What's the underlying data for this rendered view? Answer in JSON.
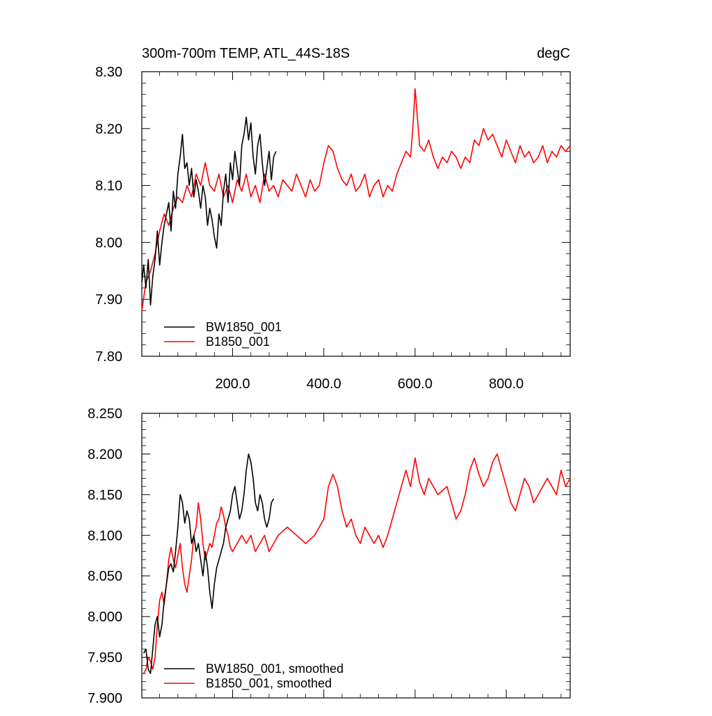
{
  "chart_data": [
    {
      "type": "line",
      "title": "300m-700m TEMP, ATL_44S-18S",
      "units": "degC",
      "xlim": [
        1,
        940
      ],
      "ylim": [
        7.8,
        8.3
      ],
      "x_ticks": [
        200,
        400,
        600,
        800
      ],
      "x_tick_labels": [
        "200.0",
        "400.0",
        "600.0",
        "800.0"
      ],
      "y_ticks": [
        7.8,
        7.9,
        8.0,
        8.1,
        8.2,
        8.3
      ],
      "y_tick_labels": [
        "7.80",
        "7.90",
        "8.00",
        "8.10",
        "8.20",
        "8.30"
      ],
      "legend_position": "bottom-left",
      "series": [
        {
          "name": "BW1850_001",
          "color": "#000000",
          "x": [
            1,
            5,
            10,
            15,
            20,
            25,
            30,
            35,
            40,
            45,
            50,
            55,
            60,
            65,
            70,
            75,
            80,
            85,
            90,
            95,
            100,
            105,
            110,
            115,
            120,
            125,
            130,
            135,
            140,
            145,
            150,
            155,
            160,
            165,
            170,
            175,
            180,
            185,
            190,
            195,
            200,
            205,
            210,
            215,
            220,
            225,
            230,
            235,
            240,
            245,
            250,
            255,
            260,
            265,
            270,
            275,
            280,
            285,
            290,
            295
          ],
          "values": [
            7.93,
            7.96,
            7.92,
            7.97,
            7.89,
            7.94,
            7.97,
            8.02,
            7.96,
            8.0,
            8.03,
            8.05,
            8.07,
            8.02,
            8.09,
            8.06,
            8.12,
            8.15,
            8.19,
            8.13,
            8.14,
            8.1,
            8.13,
            8.08,
            8.11,
            8.09,
            8.06,
            8.1,
            8.08,
            8.03,
            8.06,
            8.04,
            8.01,
            7.99,
            8.05,
            8.03,
            8.09,
            8.12,
            8.07,
            8.14,
            8.11,
            8.16,
            8.13,
            8.1,
            8.17,
            8.19,
            8.22,
            8.18,
            8.21,
            8.15,
            8.12,
            8.17,
            8.19,
            8.14,
            8.1,
            8.13,
            8.16,
            8.11,
            8.15,
            8.16
          ]
        },
        {
          "name": "B1850_001",
          "color": "#ff0000",
          "x": [
            1,
            10,
            20,
            30,
            40,
            50,
            60,
            70,
            80,
            90,
            100,
            110,
            120,
            130,
            140,
            150,
            160,
            170,
            180,
            190,
            200,
            210,
            220,
            230,
            240,
            250,
            260,
            270,
            280,
            290,
            300,
            310,
            320,
            330,
            340,
            350,
            360,
            370,
            380,
            390,
            400,
            410,
            420,
            430,
            440,
            450,
            460,
            470,
            480,
            490,
            500,
            510,
            520,
            530,
            540,
            550,
            560,
            570,
            580,
            590,
            595,
            600,
            610,
            620,
            630,
            640,
            650,
            660,
            670,
            680,
            690,
            700,
            710,
            720,
            730,
            740,
            750,
            760,
            770,
            780,
            790,
            800,
            810,
            820,
            830,
            840,
            850,
            860,
            870,
            880,
            890,
            900,
            910,
            920,
            930,
            940
          ],
          "values": [
            7.88,
            7.93,
            7.95,
            7.98,
            8.02,
            8.05,
            8.03,
            8.06,
            8.08,
            8.07,
            8.1,
            8.08,
            8.12,
            8.1,
            8.14,
            8.1,
            8.09,
            8.12,
            8.08,
            8.1,
            8.07,
            8.11,
            8.09,
            8.12,
            8.08,
            8.1,
            8.07,
            8.12,
            8.09,
            8.1,
            8.08,
            8.11,
            8.1,
            8.09,
            8.12,
            8.1,
            8.08,
            8.11,
            8.09,
            8.1,
            8.14,
            8.17,
            8.16,
            8.13,
            8.11,
            8.1,
            8.12,
            8.09,
            8.1,
            8.12,
            8.08,
            8.1,
            8.11,
            8.08,
            8.1,
            8.09,
            8.12,
            8.14,
            8.16,
            8.15,
            8.2,
            8.27,
            8.17,
            8.16,
            8.18,
            8.15,
            8.13,
            8.15,
            8.14,
            8.16,
            8.15,
            8.13,
            8.15,
            8.14,
            8.18,
            8.17,
            8.2,
            8.18,
            8.19,
            8.17,
            8.15,
            8.18,
            8.16,
            8.14,
            8.17,
            8.15,
            8.16,
            8.14,
            8.15,
            8.17,
            8.14,
            8.16,
            8.15,
            8.17,
            8.16,
            8.17
          ]
        }
      ]
    },
    {
      "type": "line",
      "title": "",
      "xlim": [
        1,
        940
      ],
      "ylim": [
        7.9,
        8.25
      ],
      "x_ticks": [
        200,
        400,
        600,
        800
      ],
      "x_tick_labels": [
        "",
        "",
        "",
        ""
      ],
      "y_ticks": [
        7.9,
        7.95,
        8.0,
        8.05,
        8.1,
        8.15,
        8.2,
        8.25
      ],
      "y_tick_labels": [
        "7.900",
        "7.950",
        "8.000",
        "8.050",
        "8.100",
        "8.150",
        "8.200",
        "8.250"
      ],
      "legend_position": "bottom-left",
      "series": [
        {
          "name": "BW1850_001, smoothed",
          "color": "#000000",
          "x": [
            5,
            10,
            15,
            20,
            25,
            30,
            35,
            40,
            45,
            50,
            55,
            60,
            65,
            70,
            75,
            80,
            85,
            90,
            95,
            100,
            105,
            110,
            115,
            120,
            125,
            130,
            135,
            140,
            145,
            150,
            155,
            160,
            165,
            170,
            175,
            180,
            185,
            190,
            195,
            200,
            205,
            210,
            215,
            220,
            225,
            230,
            235,
            240,
            245,
            250,
            255,
            260,
            265,
            270,
            275,
            280,
            285,
            290
          ],
          "values": [
            7.955,
            7.96,
            7.935,
            7.93,
            7.96,
            7.99,
            8.0,
            7.975,
            7.99,
            8.02,
            8.04,
            8.06,
            8.065,
            8.055,
            8.08,
            8.11,
            8.15,
            8.14,
            8.115,
            8.13,
            8.12,
            8.09,
            8.1,
            8.08,
            8.09,
            8.07,
            8.05,
            8.08,
            8.06,
            8.03,
            8.01,
            8.04,
            8.06,
            8.07,
            8.08,
            8.09,
            8.11,
            8.12,
            8.13,
            8.15,
            8.16,
            8.14,
            8.12,
            8.13,
            8.15,
            8.18,
            8.2,
            8.19,
            8.17,
            8.14,
            8.13,
            8.15,
            8.14,
            8.12,
            8.11,
            8.12,
            8.14,
            8.145
          ]
        },
        {
          "name": "B1850_001, smoothed",
          "color": "#ff0000",
          "x": [
            5,
            10,
            15,
            20,
            25,
            30,
            35,
            40,
            45,
            50,
            55,
            60,
            65,
            70,
            75,
            80,
            85,
            90,
            95,
            100,
            105,
            110,
            115,
            120,
            125,
            130,
            135,
            140,
            145,
            150,
            155,
            160,
            165,
            170,
            175,
            180,
            185,
            190,
            195,
            200,
            210,
            220,
            230,
            240,
            250,
            260,
            270,
            280,
            290,
            300,
            320,
            340,
            360,
            380,
            400,
            410,
            420,
            430,
            440,
            450,
            460,
            470,
            480,
            490,
            500,
            510,
            520,
            530,
            540,
            550,
            560,
            570,
            580,
            590,
            600,
            610,
            620,
            630,
            640,
            650,
            660,
            670,
            680,
            690,
            700,
            710,
            720,
            730,
            740,
            750,
            760,
            770,
            780,
            790,
            800,
            810,
            820,
            830,
            840,
            850,
            860,
            870,
            880,
            890,
            900,
            910,
            920,
            930,
            940
          ],
          "values": [
            7.93,
            7.935,
            7.95,
            7.945,
            7.935,
            7.95,
            7.99,
            8.02,
            8.03,
            8.015,
            8.04,
            8.07,
            8.085,
            8.07,
            8.06,
            8.075,
            8.09,
            8.06,
            8.04,
            8.03,
            8.05,
            8.07,
            8.1,
            8.11,
            8.14,
            8.12,
            8.09,
            8.07,
            8.08,
            8.09,
            8.085,
            8.1,
            8.115,
            8.12,
            8.135,
            8.125,
            8.11,
            8.1,
            8.085,
            8.08,
            8.09,
            8.1,
            8.09,
            8.1,
            8.08,
            8.09,
            8.1,
            8.08,
            8.09,
            8.1,
            8.11,
            8.1,
            8.09,
            8.1,
            8.12,
            8.16,
            8.175,
            8.16,
            8.13,
            8.11,
            8.12,
            8.1,
            8.09,
            8.11,
            8.1,
            8.09,
            8.1,
            8.085,
            8.1,
            8.12,
            8.14,
            8.16,
            8.18,
            8.16,
            8.195,
            8.165,
            8.15,
            8.17,
            8.16,
            8.15,
            8.155,
            8.16,
            8.14,
            8.12,
            8.13,
            8.15,
            8.18,
            8.195,
            8.175,
            8.16,
            8.17,
            8.19,
            8.2,
            8.18,
            8.16,
            8.14,
            8.13,
            8.15,
            8.17,
            8.16,
            8.14,
            8.15,
            8.16,
            8.17,
            8.16,
            8.15,
            8.18,
            8.16,
            8.17
          ]
        }
      ]
    }
  ]
}
